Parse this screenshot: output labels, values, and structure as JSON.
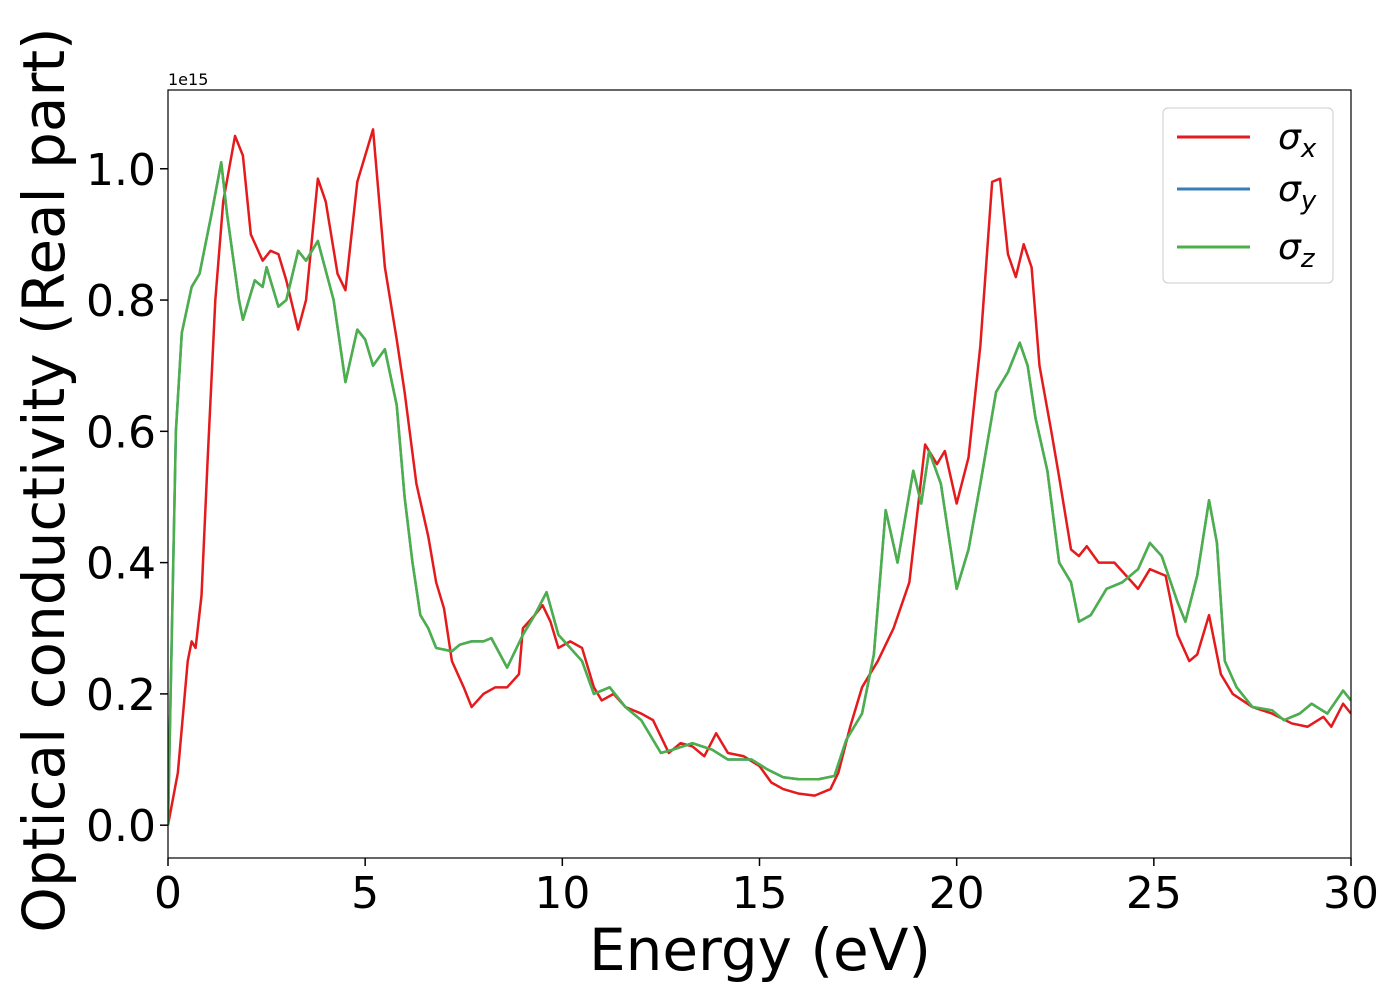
{
  "chart_data": {
    "type": "line",
    "xlabel": "Energy (eV)",
    "ylabel": "Optical conductivity (Real part)",
    "offset_text": "1e15",
    "xlim": [
      0,
      30
    ],
    "xticks": [
      0,
      5,
      10,
      15,
      20,
      25,
      30
    ],
    "ylim": [
      -0.05,
      1.12
    ],
    "yticks": [
      {
        "value": 0,
        "label": "0.0"
      },
      0.2,
      0.4,
      0.6,
      0.8,
      {
        "value": 1,
        "label": "1.0"
      }
    ],
    "legend": "upper right",
    "series": [
      {
        "name": "σx",
        "color": "#e41a1c",
        "x": [
          0,
          0.25,
          0.5,
          0.6,
          0.7,
          0.85,
          1.0,
          1.2,
          1.4,
          1.7,
          1.9,
          2.1,
          2.4,
          2.6,
          2.8,
          3.0,
          3.3,
          3.5,
          3.8,
          4.0,
          4.3,
          4.5,
          4.8,
          5.0,
          5.2,
          5.5,
          5.8,
          6.0,
          6.3,
          6.6,
          6.8,
          7.0,
          7.2,
          7.5,
          7.7,
          8.0,
          8.3,
          8.6,
          8.9,
          9.0,
          9.3,
          9.5,
          9.7,
          9.9,
          10.2,
          10.5,
          10.8,
          11.0,
          11.3,
          11.6,
          12.0,
          12.3,
          12.7,
          13.0,
          13.3,
          13.6,
          13.9,
          14.2,
          14.6,
          15.0,
          15.3,
          15.6,
          16.0,
          16.4,
          16.8,
          17.0,
          17.3,
          17.6,
          18.0,
          18.4,
          18.8,
          19.2,
          19.5,
          19.7,
          20.0,
          20.3,
          20.6,
          20.9,
          21.1,
          21.3,
          21.5,
          21.7,
          21.9,
          22.1,
          22.4,
          22.6,
          22.9,
          23.1,
          23.3,
          23.6,
          24.0,
          24.3,
          24.6,
          24.9,
          25.3,
          25.6,
          25.9,
          26.1,
          26.4,
          26.7,
          27.0,
          27.5,
          28.0,
          28.5,
          28.9,
          29.3,
          29.5,
          29.8,
          30
        ],
        "values": [
          0,
          0.08,
          0.25,
          0.28,
          0.27,
          0.35,
          0.55,
          0.8,
          0.95,
          1.05,
          1.02,
          0.9,
          0.86,
          0.875,
          0.87,
          0.83,
          0.755,
          0.8,
          0.985,
          0.95,
          0.84,
          0.815,
          0.98,
          1.02,
          1.06,
          0.85,
          0.74,
          0.66,
          0.52,
          0.44,
          0.37,
          0.33,
          0.25,
          0.21,
          0.18,
          0.2,
          0.21,
          0.21,
          0.23,
          0.3,
          0.32,
          0.335,
          0.31,
          0.27,
          0.28,
          0.27,
          0.21,
          0.19,
          0.2,
          0.18,
          0.17,
          0.16,
          0.11,
          0.125,
          0.12,
          0.105,
          0.14,
          0.11,
          0.105,
          0.09,
          0.065,
          0.055,
          0.048,
          0.045,
          0.055,
          0.08,
          0.15,
          0.21,
          0.25,
          0.3,
          0.37,
          0.58,
          0.55,
          0.57,
          0.49,
          0.56,
          0.73,
          0.98,
          0.985,
          0.87,
          0.835,
          0.885,
          0.85,
          0.7,
          0.6,
          0.53,
          0.42,
          0.41,
          0.425,
          0.4,
          0.4,
          0.38,
          0.36,
          0.39,
          0.38,
          0.29,
          0.25,
          0.26,
          0.32,
          0.23,
          0.2,
          0.18,
          0.17,
          0.155,
          0.15,
          0.165,
          0.15,
          0.185,
          0.17
        ]
      },
      {
        "name": "σy",
        "color": "#377eb8",
        "x": [
          0,
          0.2,
          0.35,
          0.6,
          0.8,
          1.0,
          1.1,
          1.35,
          1.5,
          1.8,
          1.9,
          2.2,
          2.4,
          2.5,
          2.8,
          3.0,
          3.3,
          3.5,
          3.8,
          4.2,
          4.5,
          4.8,
          5.0,
          5.2,
          5.5,
          5.8,
          6.0,
          6.2,
          6.4,
          6.6,
          6.8,
          7.2,
          7.4,
          7.7,
          8.0,
          8.2,
          8.6,
          9.0,
          9.3,
          9.6,
          9.9,
          10.2,
          10.5,
          10.8,
          11.2,
          11.6,
          12.0,
          12.5,
          12.8,
          13.3,
          13.8,
          14.2,
          14.8,
          15.2,
          15.6,
          16.0,
          16.5,
          16.9,
          17.2,
          17.6,
          17.9,
          18.2,
          18.5,
          18.9,
          19.1,
          19.3,
          19.6,
          20.0,
          20.3,
          20.6,
          21.0,
          21.3,
          21.6,
          21.8,
          22.0,
          22.3,
          22.6,
          22.9,
          23.1,
          23.4,
          23.8,
          24.2,
          24.6,
          24.9,
          25.2,
          25.6,
          25.8,
          26.1,
          26.4,
          26.6,
          26.8,
          27.1,
          27.5,
          28.0,
          28.3,
          28.7,
          29.0,
          29.4,
          29.8,
          30
        ],
        "values": [
          0,
          0.6,
          0.75,
          0.82,
          0.84,
          0.9,
          0.93,
          1.01,
          0.93,
          0.8,
          0.77,
          0.83,
          0.82,
          0.85,
          0.79,
          0.8,
          0.875,
          0.86,
          0.89,
          0.8,
          0.675,
          0.755,
          0.74,
          0.7,
          0.725,
          0.64,
          0.5,
          0.4,
          0.32,
          0.3,
          0.27,
          0.265,
          0.275,
          0.28,
          0.28,
          0.285,
          0.24,
          0.29,
          0.32,
          0.355,
          0.29,
          0.27,
          0.25,
          0.2,
          0.21,
          0.18,
          0.16,
          0.11,
          0.115,
          0.125,
          0.115,
          0.1,
          0.1,
          0.085,
          0.073,
          0.07,
          0.07,
          0.075,
          0.13,
          0.17,
          0.26,
          0.48,
          0.4,
          0.54,
          0.49,
          0.57,
          0.52,
          0.36,
          0.42,
          0.52,
          0.66,
          0.69,
          0.735,
          0.7,
          0.62,
          0.54,
          0.4,
          0.37,
          0.31,
          0.32,
          0.36,
          0.37,
          0.39,
          0.43,
          0.41,
          0.34,
          0.31,
          0.38,
          0.495,
          0.43,
          0.25,
          0.21,
          0.18,
          0.175,
          0.16,
          0.17,
          0.185,
          0.17,
          0.205,
          0.19
        ]
      },
      {
        "name": "σz",
        "color": "#4daf4a",
        "x": [
          0,
          0.2,
          0.35,
          0.6,
          0.8,
          1.0,
          1.1,
          1.35,
          1.5,
          1.8,
          1.9,
          2.2,
          2.4,
          2.5,
          2.8,
          3.0,
          3.3,
          3.5,
          3.8,
          4.2,
          4.5,
          4.8,
          5.0,
          5.2,
          5.5,
          5.8,
          6.0,
          6.2,
          6.4,
          6.6,
          6.8,
          7.2,
          7.4,
          7.7,
          8.0,
          8.2,
          8.6,
          9.0,
          9.3,
          9.6,
          9.9,
          10.2,
          10.5,
          10.8,
          11.2,
          11.6,
          12.0,
          12.5,
          12.8,
          13.3,
          13.8,
          14.2,
          14.8,
          15.2,
          15.6,
          16.0,
          16.5,
          16.9,
          17.2,
          17.6,
          17.9,
          18.2,
          18.5,
          18.9,
          19.1,
          19.3,
          19.6,
          20.0,
          20.3,
          20.6,
          21.0,
          21.3,
          21.6,
          21.8,
          22.0,
          22.3,
          22.6,
          22.9,
          23.1,
          23.4,
          23.8,
          24.2,
          24.6,
          24.9,
          25.2,
          25.6,
          25.8,
          26.1,
          26.4,
          26.6,
          26.8,
          27.1,
          27.5,
          28.0,
          28.3,
          28.7,
          29.0,
          29.4,
          29.8,
          30
        ],
        "values": [
          0,
          0.6,
          0.75,
          0.82,
          0.84,
          0.9,
          0.93,
          1.01,
          0.93,
          0.8,
          0.77,
          0.83,
          0.82,
          0.85,
          0.79,
          0.8,
          0.875,
          0.86,
          0.89,
          0.8,
          0.675,
          0.755,
          0.74,
          0.7,
          0.725,
          0.64,
          0.5,
          0.4,
          0.32,
          0.3,
          0.27,
          0.265,
          0.275,
          0.28,
          0.28,
          0.285,
          0.24,
          0.29,
          0.32,
          0.355,
          0.29,
          0.27,
          0.25,
          0.2,
          0.21,
          0.18,
          0.16,
          0.11,
          0.115,
          0.125,
          0.115,
          0.1,
          0.1,
          0.085,
          0.073,
          0.07,
          0.07,
          0.075,
          0.13,
          0.17,
          0.26,
          0.48,
          0.4,
          0.54,
          0.49,
          0.57,
          0.52,
          0.36,
          0.42,
          0.52,
          0.66,
          0.69,
          0.735,
          0.7,
          0.62,
          0.54,
          0.4,
          0.37,
          0.31,
          0.32,
          0.36,
          0.37,
          0.39,
          0.43,
          0.41,
          0.34,
          0.31,
          0.38,
          0.495,
          0.43,
          0.25,
          0.21,
          0.18,
          0.175,
          0.16,
          0.17,
          0.185,
          0.17,
          0.205,
          0.19
        ]
      }
    ]
  }
}
